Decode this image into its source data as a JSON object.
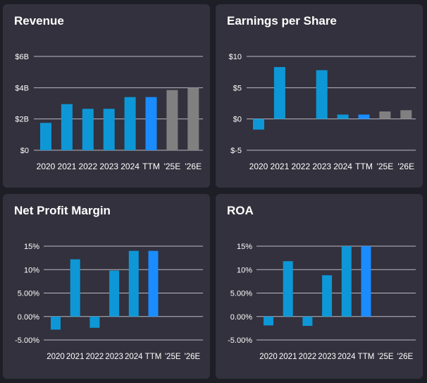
{
  "colors": {
    "background": "#1e1e26",
    "panel": "#32313d",
    "bar_actual": "#0e97d6",
    "bar_ttm": "#1a8cff",
    "bar_estimate": "#808080",
    "grid": "#b9b9c2",
    "text": "#ffffff"
  },
  "chart_data": [
    {
      "type": "bar",
      "title": "Revenue",
      "categories": [
        "2020",
        "2021",
        "2022",
        "2023",
        "2024",
        "TTM",
        "'25E",
        "'26E"
      ],
      "values": [
        1.75,
        2.95,
        2.65,
        2.65,
        3.4,
        3.4,
        3.85,
        4.0
      ],
      "bar_kinds": [
        "actual",
        "actual",
        "actual",
        "actual",
        "actual",
        "ttm",
        "estimate",
        "estimate"
      ],
      "yticks": [
        0,
        2,
        4,
        6
      ],
      "ytick_labels": [
        "$0",
        "$2B",
        "$4B",
        "$6B"
      ],
      "ylim": [
        0,
        6
      ],
      "xlabel": "",
      "ylabel": "",
      "grid": true
    },
    {
      "type": "bar",
      "title": "Earnings per Share",
      "categories": [
        "2020",
        "2021",
        "2022",
        "2023",
        "2024",
        "TTM",
        "'25E",
        "'26E"
      ],
      "values": [
        -1.7,
        8.3,
        null,
        7.8,
        0.7,
        0.7,
        1.2,
        1.4
      ],
      "bar_kinds": [
        "actual",
        "actual",
        "actual",
        "actual",
        "actual",
        "ttm",
        "estimate",
        "estimate"
      ],
      "yticks": [
        -5,
        0,
        5,
        10
      ],
      "ytick_labels": [
        "$-5",
        "$0",
        "$5",
        "$10"
      ],
      "ylim": [
        -5,
        10
      ],
      "xlabel": "",
      "ylabel": "",
      "grid": true
    },
    {
      "type": "bar",
      "title": "Net Profit Margin",
      "categories": [
        "2020",
        "2021",
        "2022",
        "2023",
        "2024",
        "TTM",
        "'25E",
        "'26E"
      ],
      "values": [
        -2.8,
        12.2,
        -2.4,
        9.8,
        14.0,
        14.0,
        null,
        null
      ],
      "bar_kinds": [
        "actual",
        "actual",
        "actual",
        "actual",
        "actual",
        "ttm",
        "estimate",
        "estimate"
      ],
      "yticks": [
        -5,
        0,
        5,
        10,
        15
      ],
      "ytick_labels": [
        "-5.00%",
        "0.00%",
        "5.00%",
        "10%",
        "15%"
      ],
      "ylim": [
        -5,
        15
      ],
      "xlabel": "",
      "ylabel": "",
      "grid": true
    },
    {
      "type": "bar",
      "title": "ROA",
      "categories": [
        "2020",
        "2021",
        "2022",
        "2023",
        "2024",
        "TTM",
        "'25E",
        "'26E"
      ],
      "values": [
        -1.9,
        11.8,
        -2.0,
        8.8,
        15.0,
        15.0,
        null,
        null
      ],
      "bar_kinds": [
        "actual",
        "actual",
        "actual",
        "actual",
        "actual",
        "ttm",
        "estimate",
        "estimate"
      ],
      "yticks": [
        -5,
        0,
        5,
        10,
        15
      ],
      "ytick_labels": [
        "-5.00%",
        "0.00%",
        "5.00%",
        "10%",
        "15%"
      ],
      "ylim": [
        -5,
        15
      ],
      "xlabel": "",
      "ylabel": "",
      "grid": true
    }
  ]
}
